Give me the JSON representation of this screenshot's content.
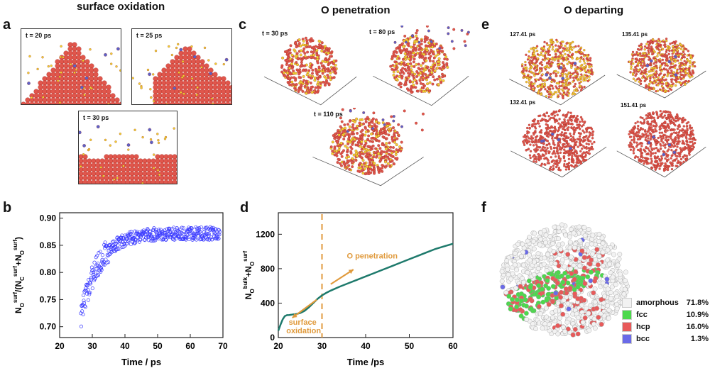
{
  "titles": {
    "surface_oxidation": "surface oxidation",
    "o_penetration": "O penetration",
    "o_departing": "O departing"
  },
  "panel_letters": [
    "a",
    "b",
    "c",
    "d",
    "e",
    "f"
  ],
  "panel_a": {
    "snapshots": [
      "t = 20 ps",
      "t = 25 ps",
      "t = 30 ps"
    ]
  },
  "panel_c": {
    "snapshots": [
      "t = 30 ps",
      "t = 80 ps",
      "t = 110 ps"
    ]
  },
  "panel_e": {
    "snapshots": [
      "127.41 ps",
      "135.41 ps",
      "132.41 ps",
      "151.41 ps"
    ]
  },
  "panel_f": {
    "legend": [
      {
        "name": "amorphous",
        "value": "71.8%",
        "color": "#f2f2f2"
      },
      {
        "name": "fcc",
        "value": "10.9%",
        "color": "#4cd94c"
      },
      {
        "name": "hcp",
        "value": "16.0%",
        "color": "#e85a5a"
      },
      {
        "name": "bcc",
        "value": "1.3%",
        "color": "#6a6ae8"
      }
    ]
  },
  "colors": {
    "atom_red": "#e0564c",
    "atom_yellow": "#f1d431",
    "atom_blue": "#5b62c8",
    "scatter_blue": "#3a3aff",
    "line_teal": "#1e7a6c",
    "annot_orange": "#e09a3c"
  },
  "chart_data": [
    {
      "type": "scatter",
      "panel": "b",
      "title": "",
      "xlabel": "Time / ps",
      "ylabel": "N_O^surf/(N_C^surf+N_O^surf)",
      "ylabel_parts": {
        "n": "N",
        "o": "O",
        "c": "C",
        "surf": "surf",
        "open": "/(",
        "plus": "+",
        "close": ")"
      },
      "xlim": [
        20,
        70
      ],
      "ylim": [
        0.68,
        0.91
      ],
      "xticks": [
        20,
        30,
        40,
        50,
        60,
        70
      ],
      "yticks": [
        "0.70",
        "0.75",
        "0.80",
        "0.85",
        "0.90"
      ],
      "trend": {
        "start_x": 26.5,
        "end_x": 69,
        "y_start": 0.715,
        "y_plateau": 0.872,
        "rate": 0.19,
        "spread": 0.012
      },
      "n_points": 430
    },
    {
      "type": "line",
      "panel": "d",
      "title": "",
      "xlabel": "Time /ps",
      "ylabel": "N_O^bulk+N_O^surf",
      "ylabel_parts": {
        "n": "N",
        "o": "O",
        "bulk": "bulk",
        "surf": "surf",
        "plus": "+"
      },
      "xlim": [
        20,
        60
      ],
      "ylim": [
        0,
        1450
      ],
      "xticks": [
        20,
        30,
        40,
        50,
        60
      ],
      "yticks": [
        0,
        400,
        800,
        1200
      ],
      "x": [
        20,
        20.5,
        21,
        21.5,
        22,
        22.5,
        23,
        23.5,
        24,
        25,
        26,
        27,
        28,
        29,
        30,
        31,
        32,
        34,
        36,
        38,
        40,
        42,
        44,
        46,
        48,
        50,
        52,
        54,
        56,
        58,
        60
      ],
      "y": [
        80,
        150,
        210,
        250,
        260,
        262,
        265,
        270,
        272,
        285,
        310,
        350,
        400,
        450,
        490,
        520,
        545,
        590,
        630,
        670,
        710,
        750,
        790,
        830,
        870,
        910,
        950,
        990,
        1030,
        1060,
        1090
      ],
      "vline_x": 30,
      "annotations": [
        {
          "text_lines": [
            "surface",
            "oxidation"
          ],
          "x": 25.8,
          "y": 150
        },
        {
          "text_lines": [
            "O penetration"
          ],
          "x": 41.5,
          "y": 920
        }
      ]
    }
  ]
}
